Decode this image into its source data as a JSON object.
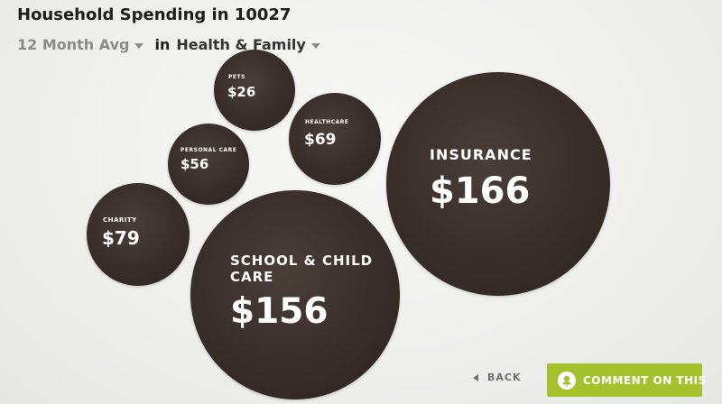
{
  "header": {
    "title": "Household Spending in 10027"
  },
  "filters": {
    "period": "12 Month Avg",
    "connector": "in",
    "category": "Health & Family"
  },
  "bubbles": {
    "pets": {
      "label": "PETS",
      "value": "$26"
    },
    "healthcare": {
      "label": "HEALTHCARE",
      "value": "$69"
    },
    "personal_care": {
      "label": "PERSONAL CARE",
      "value": "$56"
    },
    "charity": {
      "label": "CHARITY",
      "value": "$79"
    },
    "insurance": {
      "label": "INSURANCE",
      "value": "$166"
    },
    "school_child_care": {
      "label_line1": "SCHOOL & CHILD",
      "label_line2": "CARE",
      "value": "$156"
    }
  },
  "footer": {
    "back_label": "BACK",
    "comment_label": "COMMENT ON THIS"
  },
  "colors": {
    "bubble": "#3a2f2b",
    "accent": "#a5c22d",
    "background": "#efefee"
  },
  "icons": [
    "caret-down-icon",
    "back-arrow-icon",
    "comment-icon"
  ]
}
